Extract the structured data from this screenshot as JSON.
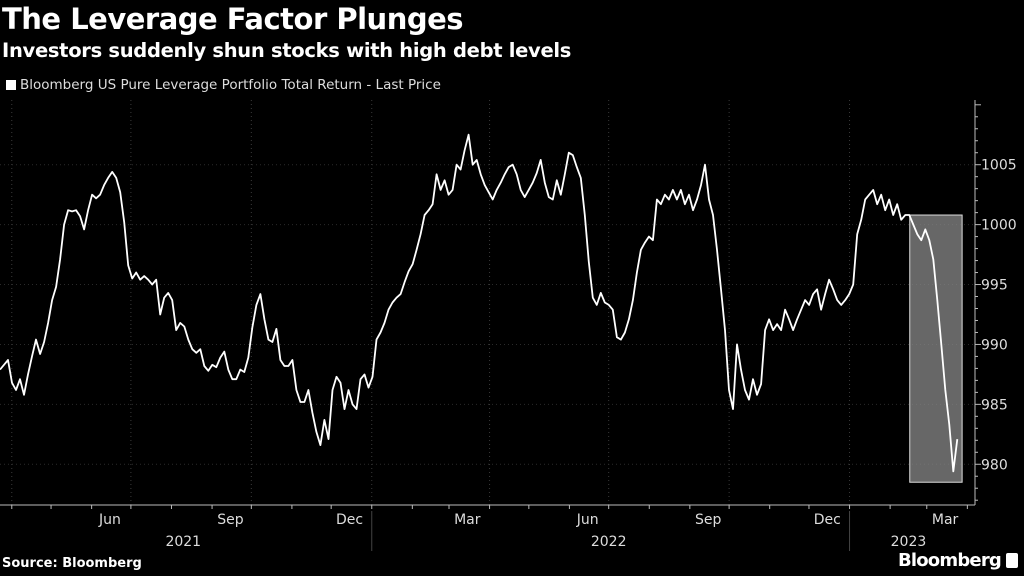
{
  "title": "The Leverage Factor Plunges",
  "subtitle": "Investors suddenly shun stocks with high debt levels",
  "source": "Source: Bloomberg",
  "brand": "Bloomberg",
  "chart_data": {
    "type": "line",
    "title": "The Leverage Factor Plunges",
    "subtitle": "Investors suddenly shun stocks with high debt levels",
    "legend": [
      {
        "name": "Bloomberg US Pure Leverage Portfolio Total Return - Last Price",
        "color": "#ffffff"
      }
    ],
    "legend_placement": "top-left",
    "xlabel": "",
    "ylabel": "",
    "x_start": "2021-03-23",
    "x_step_days": 3.06,
    "ylim": [
      976.6,
      1010.4
    ],
    "yticks": [
      980,
      985,
      990,
      995,
      1000,
      1005
    ],
    "ytick_labels": [
      "980",
      "985",
      "990",
      "995",
      "1000",
      "1005"
    ],
    "y_axis_side": "right",
    "xtick_labels": [
      {
        "label": "Jun",
        "date": "2021-06-15"
      },
      {
        "label": "Sep",
        "date": "2021-09-15"
      },
      {
        "label": "Dec",
        "date": "2021-12-15"
      },
      {
        "label": "Mar",
        "date": "2022-03-15"
      },
      {
        "label": "Jun",
        "date": "2022-06-15"
      },
      {
        "label": "Sep",
        "date": "2022-09-15"
      },
      {
        "label": "Dec",
        "date": "2022-12-15"
      },
      {
        "label": "Mar",
        "date": "2023-03-15"
      }
    ],
    "year_labels": [
      {
        "label": "2021",
        "date": "2021-08-10"
      },
      {
        "label": "2022",
        "date": "2022-07-01"
      },
      {
        "label": "2023",
        "date": "2023-02-15"
      }
    ],
    "year_separators": [
      "2022-01-01",
      "2023-01-01"
    ],
    "grid": true,
    "highlight": {
      "from": "2023-02-16",
      "to": "2023-03-28",
      "y_range": [
        978.5,
        1000.8
      ],
      "color": "#8a8a8a"
    },
    "values": [
      987.9,
      988.3,
      988.7,
      986.8,
      986.2,
      987.1,
      985.8,
      987.5,
      989.0,
      990.4,
      989.2,
      990.2,
      991.8,
      993.7,
      994.8,
      997.1,
      1000.0,
      1001.2,
      1001.1,
      1001.2,
      1000.7,
      999.6,
      1001.2,
      1002.5,
      1002.2,
      1002.5,
      1003.3,
      1003.9,
      1004.4,
      1003.9,
      1002.7,
      1000.2,
      996.6,
      995.5,
      996.0,
      995.4,
      995.7,
      995.4,
      995.0,
      995.4,
      992.5,
      993.9,
      994.3,
      993.7,
      991.2,
      991.8,
      991.5,
      990.4,
      989.6,
      989.3,
      989.6,
      988.2,
      987.8,
      988.3,
      988.1,
      988.9,
      989.4,
      987.9,
      987.1,
      987.1,
      987.9,
      987.7,
      988.9,
      991.4,
      993.3,
      994.2,
      992.1,
      990.4,
      990.2,
      991.3,
      988.7,
      988.2,
      988.2,
      988.7,
      986.2,
      985.2,
      985.2,
      986.2,
      984.3,
      982.7,
      981.6,
      983.7,
      982.1,
      986.2,
      987.3,
      986.8,
      984.6,
      986.2,
      985.0,
      984.6,
      987.1,
      987.5,
      986.4,
      987.3,
      990.4,
      991.0,
      991.8,
      992.9,
      993.5,
      993.9,
      994.2,
      995.2,
      996.1,
      996.7,
      997.9,
      999.2,
      1000.8,
      1001.2,
      1001.7,
      1004.2,
      1002.9,
      1003.7,
      1002.5,
      1002.9,
      1005.0,
      1004.6,
      1006.2,
      1007.5,
      1005.0,
      1005.4,
      1004.2,
      1003.3,
      1002.7,
      1002.1,
      1002.9,
      1003.5,
      1004.2,
      1004.8,
      1005.0,
      1004.2,
      1002.9,
      1002.3,
      1002.9,
      1003.5,
      1004.3,
      1005.4,
      1003.5,
      1002.3,
      1002.1,
      1003.7,
      1002.5,
      1004.2,
      1006.0,
      1005.8,
      1004.8,
      1003.9,
      1000.8,
      996.9,
      993.9,
      993.3,
      994.3,
      993.5,
      993.3,
      992.9,
      990.6,
      990.4,
      991.0,
      992.1,
      993.7,
      996.0,
      997.9,
      998.5,
      999.0,
      998.7,
      1002.1,
      1001.7,
      1002.5,
      1002.1,
      1002.9,
      1002.1,
      1002.9,
      1001.7,
      1002.5,
      1001.2,
      1002.1,
      1003.3,
      1005.0,
      1002.1,
      1000.8,
      997.9,
      994.6,
      991.2,
      986.2,
      984.6,
      990.0,
      987.9,
      986.2,
      985.4,
      987.1,
      985.8,
      986.7,
      991.2,
      992.1,
      991.2,
      991.7,
      991.2,
      992.9,
      992.1,
      991.2,
      992.1,
      992.9,
      993.7,
      993.3,
      994.2,
      994.6,
      992.9,
      994.2,
      995.4,
      994.6,
      993.7,
      993.3,
      993.7,
      994.2,
      995.0,
      999.2,
      1000.4,
      1002.1,
      1002.5,
      1002.9,
      1001.7,
      1002.5,
      1001.2,
      1002.1,
      1000.8,
      1001.7,
      1000.4,
      1000.8,
      1000.8,
      1000.0,
      999.2,
      998.7,
      999.6,
      998.7,
      997.1,
      993.7,
      990.0,
      986.2,
      983.3,
      979.4,
      982.1
    ]
  }
}
